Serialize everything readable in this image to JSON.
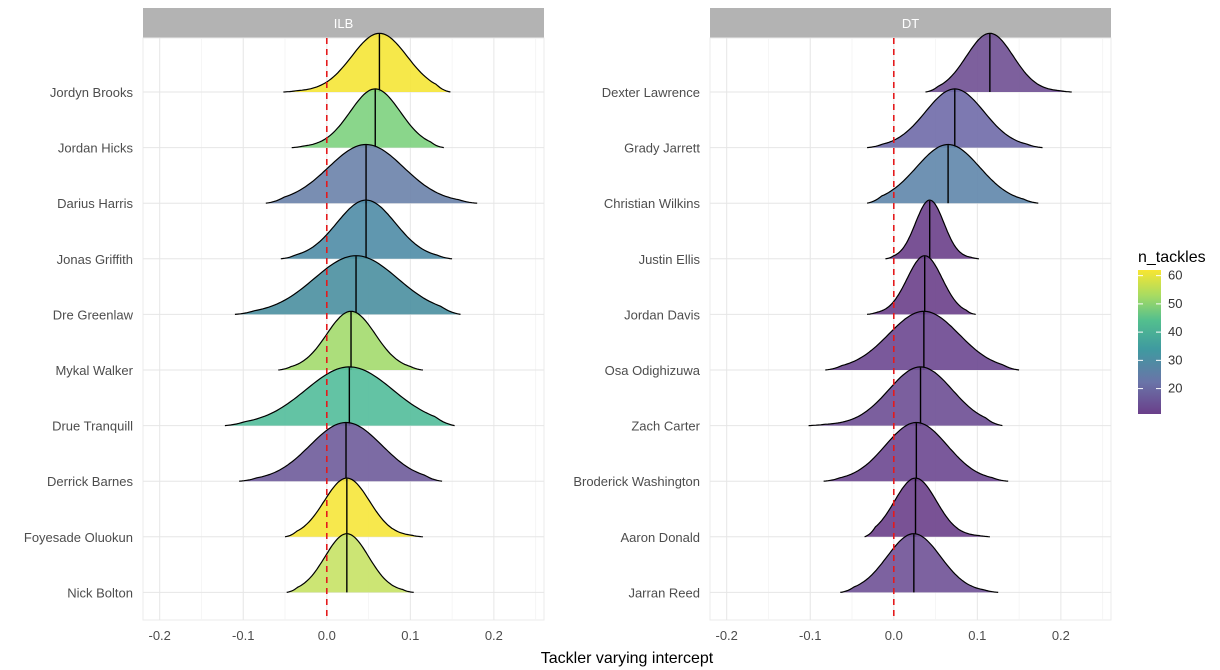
{
  "chart_data": {
    "type": "ridgeline",
    "xlabel": "Tackler varying intercept",
    "xlim": [
      -0.22,
      0.26
    ],
    "x_ticks": [
      -0.2,
      -0.1,
      0.0,
      0.1,
      0.2
    ],
    "x_tick_labels": [
      "-0.2",
      "-0.1",
      "0.0",
      "0.1",
      "0.2"
    ],
    "reference_line": {
      "x": 0.0,
      "color": "#e41a1c",
      "style": "dashed"
    },
    "legend": {
      "title": "n_tackles",
      "placement": "right",
      "range": [
        11,
        62
      ],
      "ticks": [
        20,
        30,
        40,
        50,
        60
      ],
      "tick_labels": [
        "20",
        "30",
        "40",
        "50",
        "60"
      ]
    },
    "panels": [
      {
        "title": "ILB",
        "players": [
          {
            "name": "Jordyn Brooks",
            "median": 0.063,
            "min": -0.052,
            "max": 0.148,
            "sd": 0.033,
            "n_tackles": 62,
            "color": "#f5e536"
          },
          {
            "name": "Jordan Hicks",
            "median": 0.058,
            "min": -0.042,
            "max": 0.14,
            "sd": 0.03,
            "n_tackles": 45,
            "color": "#7dd17e"
          },
          {
            "name": "Darius Harris",
            "median": 0.047,
            "min": -0.073,
            "max": 0.18,
            "sd": 0.045,
            "n_tackles": 21,
            "color": "#6a82aa"
          },
          {
            "name": "Jonas Griffith",
            "median": 0.047,
            "min": -0.055,
            "max": 0.15,
            "sd": 0.035,
            "n_tackles": 27,
            "color": "#4f8ca6"
          },
          {
            "name": "Dre Greenlaw",
            "median": 0.035,
            "min": -0.11,
            "max": 0.16,
            "sd": 0.05,
            "n_tackles": 30,
            "color": "#4a8fa0"
          },
          {
            "name": "Mykal Walker",
            "median": 0.029,
            "min": -0.058,
            "max": 0.115,
            "sd": 0.029,
            "n_tackles": 54,
            "color": "#a3da6d"
          },
          {
            "name": "Drue Tranquill",
            "median": 0.027,
            "min": -0.122,
            "max": 0.153,
            "sd": 0.052,
            "n_tackles": 39,
            "color": "#52bd9a"
          },
          {
            "name": "Derrick Barnes",
            "median": 0.023,
            "min": -0.105,
            "max": 0.138,
            "sd": 0.043,
            "n_tackles": 13,
            "color": "#6e5b9a"
          },
          {
            "name": "Foyesade Oluokun",
            "median": 0.024,
            "min": -0.05,
            "max": 0.115,
            "sd": 0.027,
            "n_tackles": 61,
            "color": "#f6e53a"
          },
          {
            "name": "Nick Bolton",
            "median": 0.024,
            "min": -0.048,
            "max": 0.104,
            "sd": 0.026,
            "n_tackles": 56,
            "color": "#c6e265"
          }
        ]
      },
      {
        "title": "DT",
        "players": [
          {
            "name": "Dexter Lawrence",
            "median": 0.115,
            "min": 0.038,
            "max": 0.213,
            "sd": 0.028,
            "n_tackles": 14,
            "color": "#6f4f92"
          },
          {
            "name": "Grady Jarrett",
            "median": 0.073,
            "min": -0.032,
            "max": 0.178,
            "sd": 0.035,
            "n_tackles": 17,
            "color": "#6f6aa8"
          },
          {
            "name": "Christian Wilkins",
            "median": 0.065,
            "min": -0.032,
            "max": 0.173,
            "sd": 0.038,
            "n_tackles": 23,
            "color": "#5f86ab"
          },
          {
            "name": "Justin Ellis",
            "median": 0.043,
            "min": -0.01,
            "max": 0.102,
            "sd": 0.017,
            "n_tackles": 11,
            "color": "#6a3f8a"
          },
          {
            "name": "Jordan Davis",
            "median": 0.037,
            "min": -0.032,
            "max": 0.098,
            "sd": 0.021,
            "n_tackles": 11,
            "color": "#6a3f8a"
          },
          {
            "name": "Osa Odighizuwa",
            "median": 0.036,
            "min": -0.082,
            "max": 0.15,
            "sd": 0.042,
            "n_tackles": 12,
            "color": "#6c4790"
          },
          {
            "name": "Zach Carter",
            "median": 0.032,
            "min": -0.102,
            "max": 0.13,
            "sd": 0.038,
            "n_tackles": 13,
            "color": "#6d4e94"
          },
          {
            "name": "Broderick Washington",
            "median": 0.027,
            "min": -0.084,
            "max": 0.137,
            "sd": 0.037,
            "n_tackles": 12,
            "color": "#6c4790"
          },
          {
            "name": "Aaron Donald",
            "median": 0.026,
            "min": -0.035,
            "max": 0.115,
            "sd": 0.025,
            "n_tackles": 11,
            "color": "#6a3f8a"
          },
          {
            "name": "Jarran Reed",
            "median": 0.024,
            "min": -0.064,
            "max": 0.125,
            "sd": 0.032,
            "n_tackles": 14,
            "color": "#6f5196"
          }
        ]
      }
    ]
  }
}
